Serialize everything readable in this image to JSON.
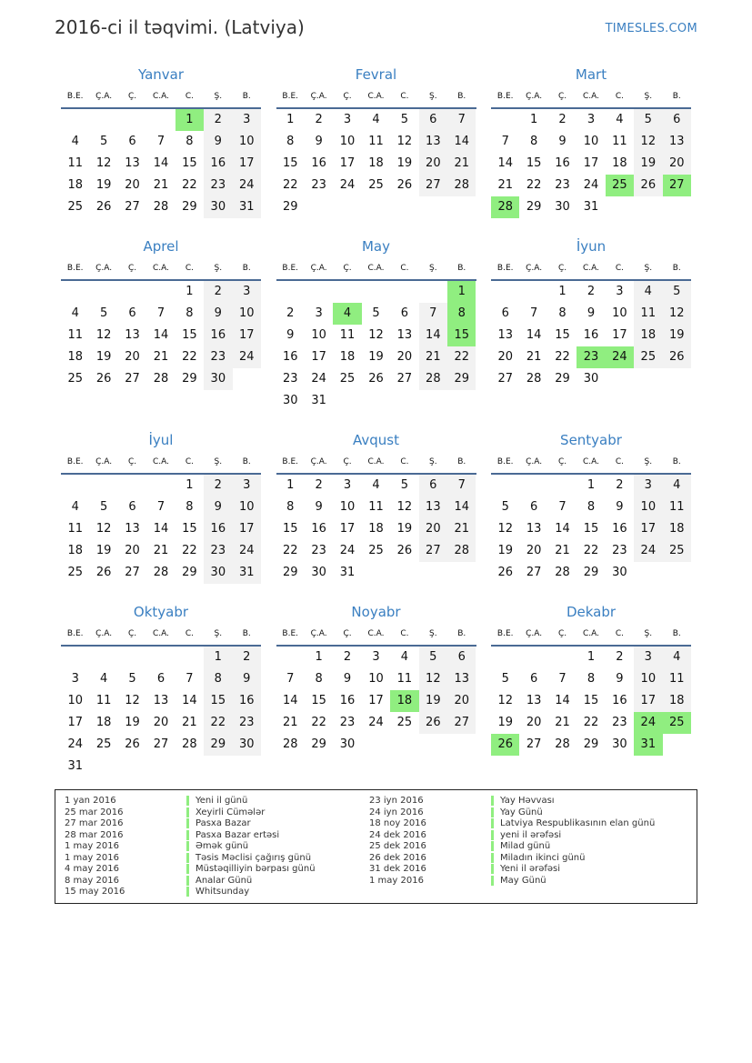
{
  "header": {
    "title": "2016-ci il təqvimi. (Latviya)",
    "brand": "TIMESLES.COM"
  },
  "year": 2016,
  "weekdays": [
    "B.E.",
    "Ç.A.",
    "Ç.",
    "C.A.",
    "C.",
    "Ş.",
    "B."
  ],
  "colors": {
    "accent": "#3a7fc1",
    "holiday": "#90ee80",
    "weekend": "#f2f2f2"
  },
  "months": [
    {
      "name": "Yanvar",
      "holidays": [
        1
      ]
    },
    {
      "name": "Fevral",
      "holidays": []
    },
    {
      "name": "Mart",
      "holidays": [
        25,
        27,
        28
      ]
    },
    {
      "name": "Aprel",
      "holidays": []
    },
    {
      "name": "May",
      "holidays": [
        1,
        4,
        8,
        15
      ]
    },
    {
      "name": "İyun",
      "holidays": [
        23,
        24
      ]
    },
    {
      "name": "İyul",
      "holidays": []
    },
    {
      "name": "Avqust",
      "holidays": []
    },
    {
      "name": "Sentyabr",
      "holidays": []
    },
    {
      "name": "Oktyabr",
      "holidays": []
    },
    {
      "name": "Noyabr",
      "holidays": [
        18
      ]
    },
    {
      "name": "Dekabr",
      "holidays": [
        24,
        25,
        26,
        31
      ]
    }
  ],
  "legend": [
    {
      "date": "1 yan 2016",
      "name": "Yeni il günü"
    },
    {
      "date": "25 mar 2016",
      "name": "Xeyirli Cümələr"
    },
    {
      "date": "27 mar 2016",
      "name": "Pasxa Bazar"
    },
    {
      "date": "28 mar 2016",
      "name": "Pasxa Bazar ertəsi"
    },
    {
      "date": "1 may 2016",
      "name": "Əmək günü"
    },
    {
      "date": "1 may 2016",
      "name": "Təsis Məclisi çağırış günü"
    },
    {
      "date": "4 may 2016",
      "name": "Müstəqilliyin bərpası günü"
    },
    {
      "date": "8 may 2016",
      "name": "Analar Günü"
    },
    {
      "date": "15 may 2016",
      "name": "Whitsunday"
    },
    {
      "date": "23 iyn 2016",
      "name": "Yay Həvvası"
    },
    {
      "date": "24 iyn 2016",
      "name": "Yay Günü"
    },
    {
      "date": "18 noy 2016",
      "name": "Latviya Respublikasının elan günü"
    },
    {
      "date": "24 dek 2016",
      "name": "yeni il ərəfəsi"
    },
    {
      "date": "25 dek 2016",
      "name": "Milad günü"
    },
    {
      "date": "26 dek 2016",
      "name": "Miladın ikinci günü"
    },
    {
      "date": "31 dek 2016",
      "name": "Yeni il ərəfəsi"
    },
    {
      "date": "1 may 2016",
      "name": "May Günü"
    }
  ]
}
